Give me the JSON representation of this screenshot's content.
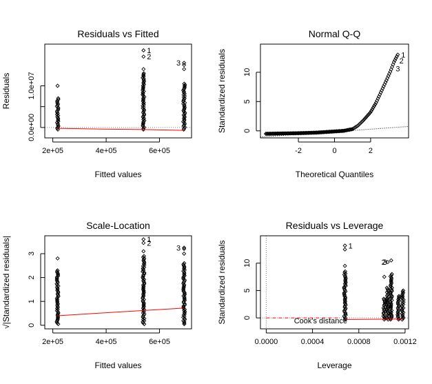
{
  "window": {
    "background": "#ffffff"
  },
  "chart_data": [
    {
      "type": "scatter",
      "title": "Residuals vs Fitted",
      "xlabel": "Fitted values",
      "ylabel": "Residuals",
      "xlim": [
        170000,
        720000
      ],
      "ylim": [
        -2500000,
        20000000
      ],
      "x_ticks": [
        200000,
        400000,
        600000
      ],
      "x_tick_labels": [
        "2e+05",
        "4e+05",
        "6e+05"
      ],
      "y_ticks": [
        0,
        5000000,
        10000000
      ],
      "y_tick_labels": [
        "0.0e+00",
        "",
        "1.0e+07"
      ],
      "clusters": [
        {
          "x": 218000,
          "y_min": -500000,
          "y_max": 7000000,
          "outliers": [
            10000000
          ]
        },
        {
          "x": 540000,
          "y_min": -500000,
          "y_max": 13000000,
          "outliers": [
            14000000,
            17000000,
            18500000
          ]
        },
        {
          "x": 692000,
          "y_min": -500000,
          "y_max": 10500000,
          "outliers": [
            14000000,
            15000000,
            15500000
          ]
        }
      ],
      "smooth_line": {
        "color": "#ff0000",
        "x": [
          218000,
          390000,
          540000,
          692000
        ],
        "y": [
          -200000,
          -400000,
          -500000,
          -700000
        ]
      },
      "ref_line": {
        "y": 0,
        "style": "dotted",
        "color": "#808080"
      },
      "point_labels": [
        {
          "x": 540000,
          "y": 18500000,
          "text": "1"
        },
        {
          "x": 540000,
          "y": 17000000,
          "text": "2"
        },
        {
          "x": 692000,
          "y": 15500000,
          "text": "3"
        }
      ]
    },
    {
      "type": "scatter",
      "title": "Normal Q-Q",
      "xlabel": "Theoretical Quantiles",
      "ylabel": "Standardized residuals",
      "xlim": [
        -4.1,
        4.1
      ],
      "ylim": [
        -1.2,
        14.8
      ],
      "x_ticks": [
        -2,
        0,
        2
      ],
      "x_tick_labels": [
        "-2",
        "0",
        "2"
      ],
      "y_ticks": [
        0,
        5,
        10
      ],
      "y_tick_labels": [
        "0",
        "5",
        "10"
      ],
      "qq_curve": {
        "x": [
          -3.8,
          -3.0,
          -2.0,
          -1.0,
          0.0,
          0.5,
          1.0,
          1.3,
          1.6,
          2.0,
          2.3,
          2.6,
          2.9,
          3.1,
          3.3,
          3.5
        ],
        "y": [
          -0.5,
          -0.45,
          -0.4,
          -0.3,
          -0.1,
          0.0,
          0.3,
          0.9,
          1.8,
          3.2,
          4.8,
          6.8,
          8.8,
          10.2,
          11.8,
          13.0
        ]
      },
      "ref_line": {
        "x": [
          -4.1,
          4.1
        ],
        "y": [
          -1.05,
          0.75
        ],
        "style": "dotted",
        "color": "#000000"
      },
      "point_labels": [
        {
          "x": 3.5,
          "y": 13.0,
          "text": "1"
        },
        {
          "x": 3.4,
          "y": 12.0,
          "text": "2"
        },
        {
          "x": 3.2,
          "y": 10.6,
          "text": "3"
        }
      ]
    },
    {
      "type": "scatter",
      "title": "Scale-Location",
      "xlabel": "Fitted values",
      "ylabel": "√|Standardized residuals|",
      "xlim": [
        170000,
        720000
      ],
      "ylim": [
        -0.15,
        3.75
      ],
      "x_ticks": [
        200000,
        400000,
        600000
      ],
      "x_tick_labels": [
        "2e+05",
        "4e+05",
        "6e+05"
      ],
      "y_ticks": [
        0,
        1,
        2,
        3
      ],
      "y_tick_labels": [
        "0",
        "1",
        "2",
        "3"
      ],
      "clusters": [
        {
          "x": 218000,
          "y_min": 0.05,
          "y_max": 2.3,
          "outliers": [
            2.8
          ]
        },
        {
          "x": 540000,
          "y_min": 0.05,
          "y_max": 2.9,
          "outliers": [
            3.1,
            3.45,
            3.6
          ]
        },
        {
          "x": 692000,
          "y_min": 0.05,
          "y_max": 2.6,
          "outliers": [
            3.0,
            3.2,
            3.25
          ]
        }
      ],
      "smooth_line": {
        "color": "#ff0000",
        "x": [
          218000,
          540000,
          692000
        ],
        "y": [
          0.4,
          0.62,
          0.72
        ]
      },
      "point_labels": [
        {
          "x": 540000,
          "y": 3.6,
          "text": "1"
        },
        {
          "x": 540000,
          "y": 3.45,
          "text": "2"
        },
        {
          "x": 692000,
          "y": 3.25,
          "text": "3"
        }
      ]
    },
    {
      "type": "scatter",
      "title": "Residuals vs Leverage",
      "xlabel": "Leverage",
      "ylabel": "Standardized residuals",
      "xlim": [
        -5e-05,
        0.00123
      ],
      "ylim": [
        -2.0,
        15.0
      ],
      "x_ticks": [
        0,
        0.0004,
        0.0008,
        0.0012
      ],
      "x_tick_labels": [
        "0.0000",
        "0.0004",
        "0.0008",
        "0.0012"
      ],
      "y_ticks": [
        0,
        5,
        10
      ],
      "y_tick_labels": [
        "0",
        "5",
        "10"
      ],
      "clusters": [
        {
          "x": 0.00068,
          "y_min": -0.3,
          "y_max": 8.5,
          "outliers": [
            9.5,
            12.5,
            13.2
          ]
        },
        {
          "x": 0.00102,
          "y_min": -0.3,
          "y_max": 3.5,
          "outliers": [
            7.5
          ]
        },
        {
          "x": 0.00105,
          "y_min": -0.3,
          "y_max": 5.5,
          "outliers": [
            10.2
          ]
        },
        {
          "x": 0.00108,
          "y_min": -0.3,
          "y_max": 8.0,
          "outliers": [
            10.5
          ]
        },
        {
          "x": 0.00114,
          "y_min": -0.3,
          "y_max": 4.0,
          "outliers": []
        },
        {
          "x": 0.00118,
          "y_min": -0.3,
          "y_max": 5.0,
          "outliers": []
        }
      ],
      "smooth_line": {
        "color": "#ff0000",
        "x": [
          0.00068,
          0.00118
        ],
        "y": [
          -0.3,
          -0.2
        ]
      },
      "cooks_line": {
        "color": "#ff0000",
        "style": "dashed",
        "x": [
          0.0,
          0.00062
        ],
        "y": [
          0,
          0
        ]
      },
      "ref_lines": [
        {
          "y": 0,
          "style": "dotted",
          "color": "#808080"
        },
        {
          "x": 0,
          "style": "dotted",
          "color": "#808080"
        }
      ],
      "annotation": "Cook's distance",
      "point_labels": [
        {
          "x": 0.00068,
          "y": 13.2,
          "text": "1"
        },
        {
          "x": 0.00105,
          "y": 10.2,
          "text": "2"
        },
        {
          "x": 0.00105,
          "y": 10.2,
          "text": "3"
        }
      ]
    }
  ]
}
